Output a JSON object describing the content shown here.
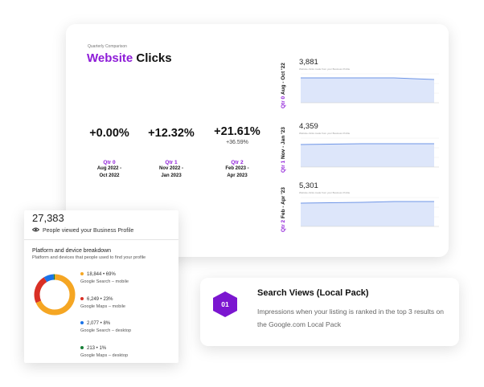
{
  "comparison": {
    "kicker": "Quarterly Comparison",
    "title_accent": "Website",
    "title_rest": "Clicks",
    "metrics": [
      {
        "pct": "+0.00%",
        "sub": "",
        "quarter": "Qtr 0",
        "range_line1": "Aug 2022 -",
        "range_line2": "Oct 2022"
      },
      {
        "pct": "+12.32%",
        "sub": "",
        "quarter": "Qtr 1",
        "range_line1": "Nov 2022 -",
        "range_line2": "Jan 2023"
      },
      {
        "pct": "+21.61%",
        "sub": "+36.59%",
        "quarter": "Qtr 2",
        "range_line1": "Feb 2023 -",
        "range_line2": "Apr 2023"
      }
    ],
    "minis": [
      {
        "quarter": "Qtr 0",
        "range": "Aug - Oct '22",
        "value": "3,881",
        "caption": "Website clicks made from your Business Profile"
      },
      {
        "quarter": "Qtr 1",
        "range": "Nov - Jan '23",
        "value": "4,359",
        "caption": "Website clicks made from your Business Profile"
      },
      {
        "quarter": "Qtr 2",
        "range": "Feb - Apr '23",
        "value": "5,301",
        "caption": "Website clicks made from your Business Profile"
      }
    ],
    "accent_color": "#8e1cd8"
  },
  "profile": {
    "total": "27,383",
    "viewed_label": "People viewed your Business Profile",
    "breakdown_title": "Platform and device breakdown",
    "breakdown_subtitle": "Platform and devices that people used to find your profile",
    "items": [
      {
        "value": "18,844 • 69%",
        "label": "Google Search – mobile",
        "color": "#f5a623",
        "share": 69
      },
      {
        "value": "6,249 • 23%",
        "label": "Google Maps – mobile",
        "color": "#d93025",
        "share": 23
      },
      {
        "value": "2,077 • 8%",
        "label": "Google Search – desktop",
        "color": "#1a73e8",
        "share": 8
      },
      {
        "value": "213 • 1%",
        "label": "Google Maps – desktop",
        "color": "#188038",
        "share": 1
      }
    ]
  },
  "search_views": {
    "badge": "01",
    "title": "Search Views (Local Pack)",
    "description": "Impressions when your listing is ranked in the top 3 results on the Google.com Local Pack"
  }
}
